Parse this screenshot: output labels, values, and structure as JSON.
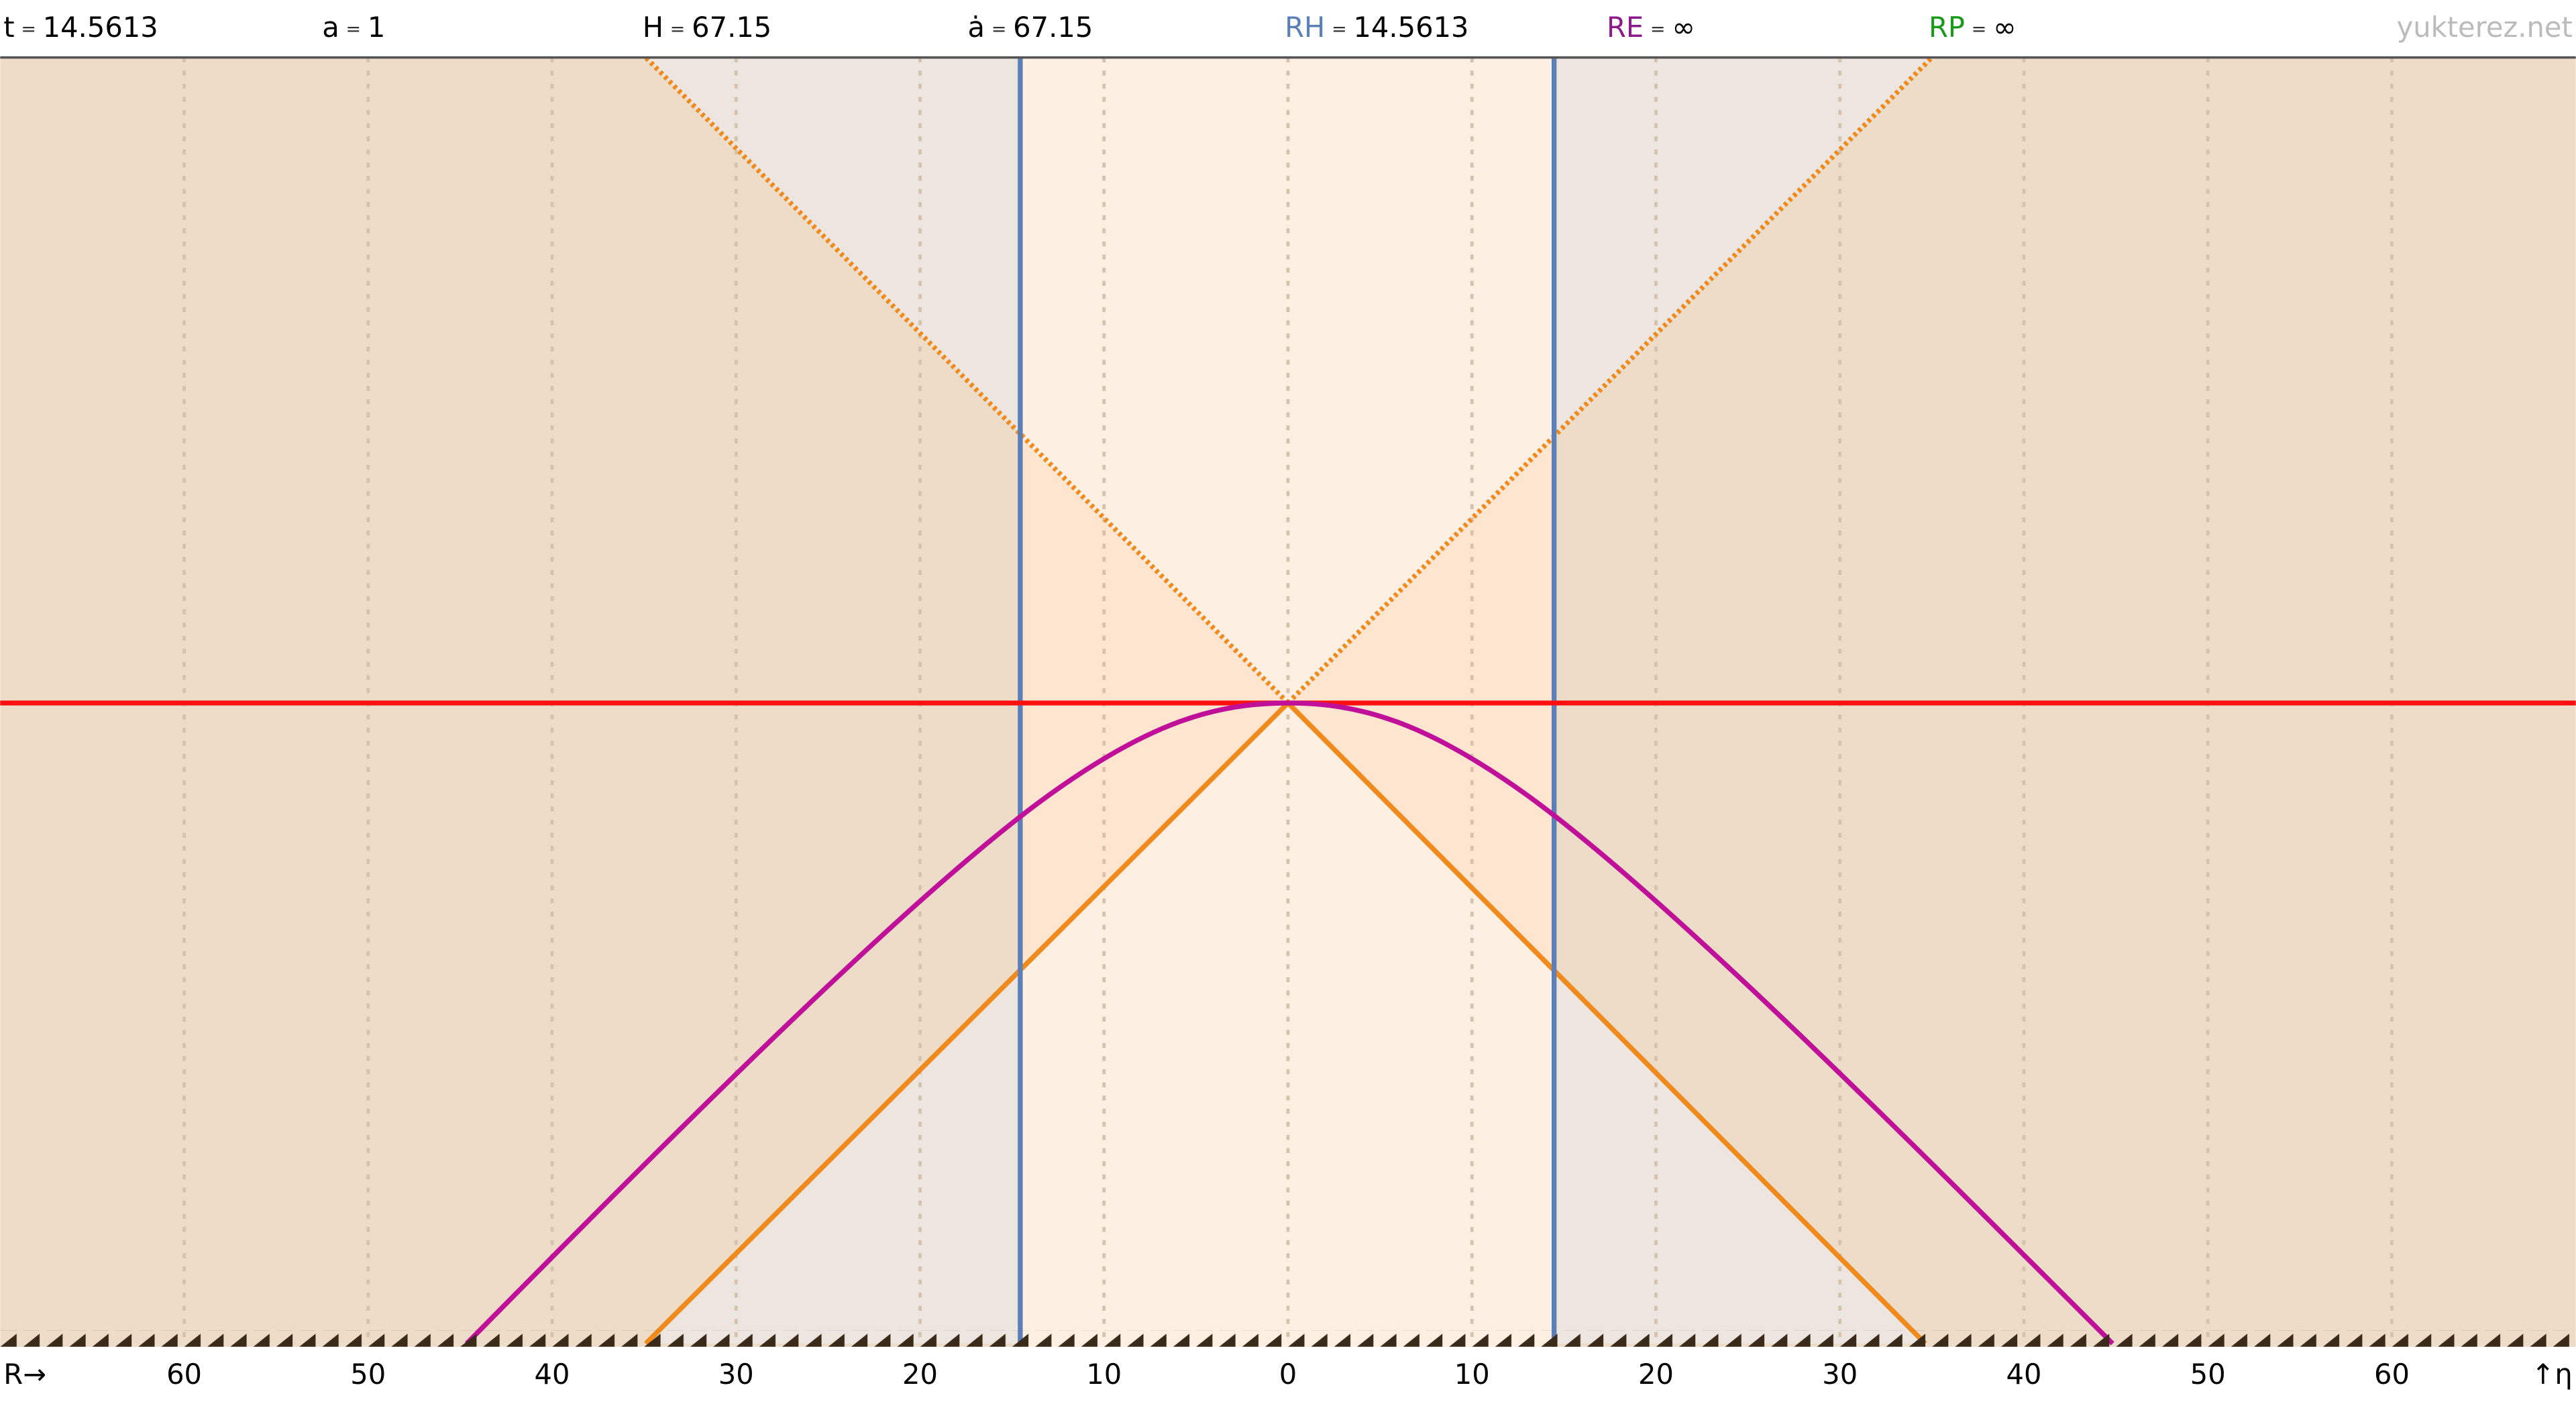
{
  "header": {
    "separator": "=",
    "items": [
      {
        "label": "t",
        "value": "14.5613",
        "color": "#000000"
      },
      {
        "label": "a",
        "value": "1",
        "color": "#000000"
      },
      {
        "label": "H",
        "value": "67.15",
        "color": "#000000"
      },
      {
        "label": "ȧ",
        "value": "67.15",
        "color": "#000000"
      },
      {
        "label": "RH",
        "value": "14.5613",
        "color": "#5b7fb8"
      },
      {
        "label": "RE",
        "value": "∞",
        "color": "#8b1a8b"
      },
      {
        "label": "RP",
        "value": "∞",
        "color": "#1a9a1a"
      }
    ],
    "site": "yukterez.net"
  },
  "axis": {
    "x_label": "R→",
    "y_label": "↑η",
    "ticks": [
      "60",
      "50",
      "40",
      "30",
      "20",
      "10",
      "0",
      "10",
      "20",
      "30",
      "40",
      "50",
      "60"
    ]
  }
}
